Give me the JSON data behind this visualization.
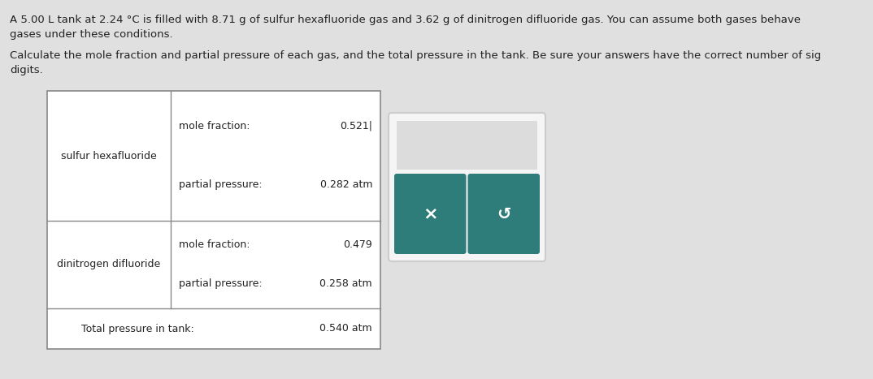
{
  "bg_color": "#e0e0e0",
  "title_line1": "A 5.00 L tank at 2.24 °C is filled with 8.71 g of sulfur hexafluoride gas and 3.62 g of dinitrogen difluoride gas. You can assume both gases behave",
  "title_line2": "gases under these conditions.",
  "subtitle_line1": "Calculate the mole fraction and partial pressure of each gas, and the total pressure in the tank. Be sure your answers have the correct number of sig",
  "subtitle_line2": "digits.",
  "gas1_name": "sulfur hexafluoride",
  "gas1_mole_fraction_label": "mole fraction:",
  "gas1_mole_fraction_value": "0.521",
  "gas1_partial_pressure_label": "partial pressure:",
  "gas1_partial_pressure_value": "0.282 atm",
  "gas2_name": "dinitrogen difluoride",
  "gas2_mole_fraction_label": "mole fraction:",
  "gas2_mole_fraction_value": "0.479",
  "gas2_partial_pressure_label": "partial pressure:",
  "gas2_partial_pressure_value": "0.258 atm",
  "total_label": "Total pressure in tank:",
  "total_value": "0.540 atm",
  "popup_main_color": "#f5f5f5",
  "popup_button_color": "#2e7d7a",
  "table_border_color": "#888888",
  "text_color": "#222222",
  "cursor_color": "#333333"
}
